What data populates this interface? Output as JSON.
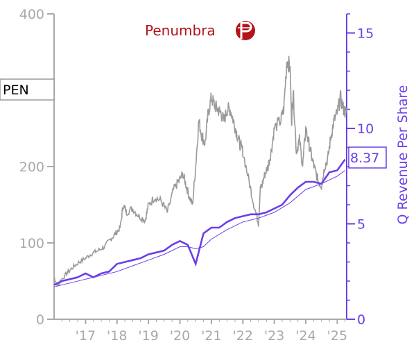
{
  "colors": {
    "price": "#999999",
    "revenue": "#6a3fe8",
    "left_axis": "#a9a9a9",
    "right_axis": "#6a3fe8",
    "brand": "#b3141b"
  },
  "logo": {
    "name": "Penumbra",
    "icon": "penumbra-p-logo-icon"
  },
  "ticker": "PEN",
  "last_value_label": "8.37",
  "chart_data": {
    "type": "line",
    "ylabel_right": "Q Revenue Per Share",
    "y_left_range": [
      0,
      400
    ],
    "y_right_range": [
      0,
      16
    ],
    "x_range": [
      2016.0,
      2025.3
    ],
    "y_left_ticks": [
      "0",
      "100",
      "200",
      "400"
    ],
    "y_left_tick_values": [
      0,
      100,
      200,
      400
    ],
    "y_right_ticks": [
      "0",
      "5",
      "10",
      "15"
    ],
    "y_right_tick_values": [
      0,
      5,
      10,
      15
    ],
    "x_ticks": [
      "'17",
      "'18",
      "'19",
      "'20",
      "'21",
      "'22",
      "'23",
      "'24",
      "'25"
    ],
    "x_tick_values": [
      2017,
      2018,
      2019,
      2020,
      2021,
      2022,
      2023,
      2024,
      2025
    ],
    "price_series": {
      "axis": "left",
      "x": [
        2016.0,
        2016.1,
        2016.2,
        2016.4,
        2016.6,
        2016.8,
        2017.0,
        2017.2,
        2017.4,
        2017.6,
        2017.8,
        2017.95,
        2018.1,
        2018.2,
        2018.3,
        2018.5,
        2018.7,
        2018.9,
        2019.0,
        2019.2,
        2019.4,
        2019.6,
        2019.8,
        2019.95,
        2020.1,
        2020.2,
        2020.3,
        2020.4,
        2020.5,
        2020.6,
        2020.7,
        2020.8,
        2020.9,
        2021.0,
        2021.1,
        2021.2,
        2021.3,
        2021.4,
        2021.5,
        2021.6,
        2021.7,
        2021.8,
        2021.9,
        2022.0,
        2022.2,
        2022.35,
        2022.5,
        2022.55,
        2022.6,
        2022.7,
        2022.8,
        2022.9,
        2023.0,
        2023.2,
        2023.3,
        2023.4,
        2023.5,
        2023.55,
        2023.6,
        2023.7,
        2023.8,
        2023.9,
        2024.0,
        2024.1,
        2024.2,
        2024.3,
        2024.4,
        2024.5,
        2024.6,
        2024.7,
        2024.8,
        2024.9,
        2025.0,
        2025.1,
        2025.2,
        2025.3
      ],
      "y": [
        55,
        44,
        50,
        60,
        68,
        75,
        80,
        86,
        90,
        95,
        105,
        112,
        120,
        150,
        140,
        145,
        135,
        130,
        150,
        160,
        155,
        140,
        170,
        180,
        190,
        175,
        160,
        150,
        200,
        260,
        240,
        230,
        270,
        290,
        280,
        275,
        270,
        260,
        275,
        275,
        260,
        245,
        230,
        220,
        180,
        150,
        125,
        170,
        175,
        190,
        200,
        220,
        250,
        260,
        275,
        340,
        330,
        260,
        300,
        220,
        235,
        200,
        250,
        230,
        210,
        195,
        180,
        175,
        200,
        210,
        240,
        260,
        270,
        290,
        275,
        270
      ]
    },
    "revenue_series": {
      "axis": "right",
      "x": [
        2016.0,
        2016.25,
        2016.5,
        2016.75,
        2017.0,
        2017.25,
        2017.5,
        2017.75,
        2018.0,
        2018.25,
        2018.5,
        2018.75,
        2019.0,
        2019.25,
        2019.5,
        2019.75,
        2020.0,
        2020.25,
        2020.5,
        2020.75,
        2021.0,
        2021.25,
        2021.5,
        2021.75,
        2022.0,
        2022.25,
        2022.5,
        2022.75,
        2023.0,
        2023.25,
        2023.5,
        2023.75,
        2024.0,
        2024.25,
        2024.5,
        2024.75,
        2025.0,
        2025.25
      ],
      "y": [
        1.8,
        2.0,
        2.1,
        2.2,
        2.4,
        2.2,
        2.4,
        2.5,
        2.9,
        3.0,
        3.1,
        3.2,
        3.4,
        3.5,
        3.6,
        3.9,
        4.1,
        3.9,
        2.9,
        4.5,
        4.8,
        4.8,
        5.1,
        5.3,
        5.4,
        5.5,
        5.5,
        5.6,
        5.8,
        6.0,
        6.5,
        6.9,
        7.2,
        7.2,
        7.1,
        7.7,
        7.8,
        8.37
      ]
    },
    "revenue_ttm_series": {
      "axis": "right",
      "x": [
        2016.0,
        2016.5,
        2017.0,
        2017.5,
        2018.0,
        2018.5,
        2019.0,
        2019.5,
        2020.0,
        2020.25,
        2020.5,
        2020.75,
        2021.0,
        2021.5,
        2022.0,
        2022.5,
        2023.0,
        2023.5,
        2024.0,
        2024.5,
        2025.0,
        2025.25
      ],
      "y": [
        1.7,
        1.9,
        2.1,
        2.3,
        2.5,
        2.8,
        3.1,
        3.4,
        3.8,
        3.8,
        3.7,
        3.8,
        4.2,
        4.7,
        5.1,
        5.3,
        5.6,
        6.1,
        6.8,
        7.1,
        7.5,
        7.8
      ]
    }
  }
}
